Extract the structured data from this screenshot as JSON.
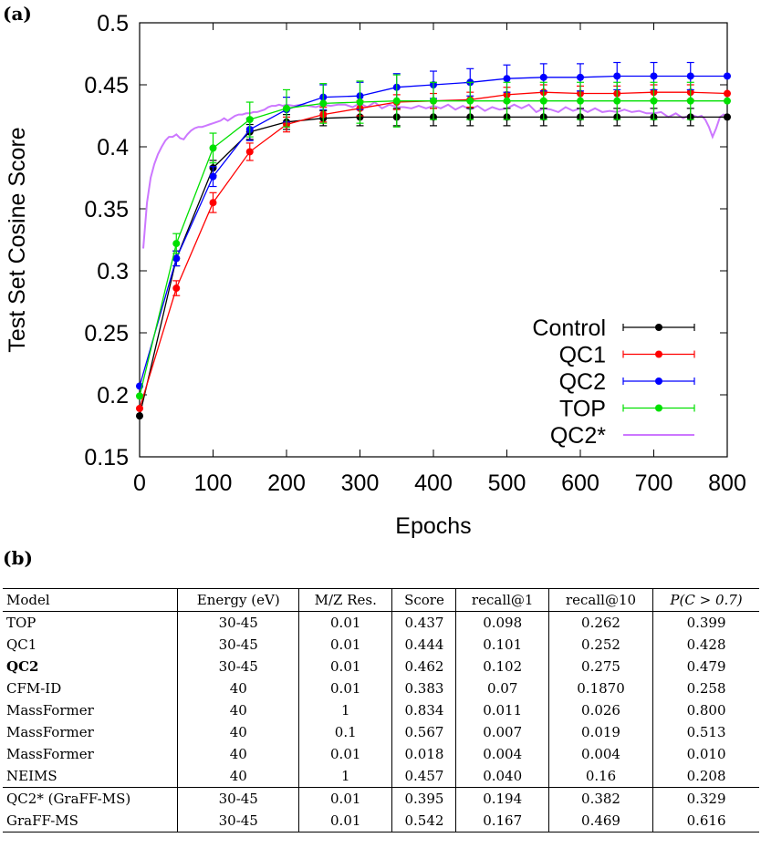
{
  "panel_a_label": "(a)",
  "panel_b_label": "(b)",
  "chart_data": {
    "type": "line",
    "xlabel": "Epochs",
    "ylabel": "Test Set Cosine Score",
    "xlim": [
      0,
      800
    ],
    "ylim": [
      0.15,
      0.5
    ],
    "xticks": [
      "0",
      "100",
      "200",
      "300",
      "400",
      "500",
      "600",
      "700",
      "800"
    ],
    "yticks": [
      "0.15",
      "0.2",
      "0.25",
      "0.3",
      "0.35",
      "0.4",
      "0.45",
      "0.5"
    ],
    "legend_position": "bottom-right",
    "grid": false,
    "x": [
      0,
      50,
      100,
      150,
      200,
      250,
      300,
      350,
      400,
      450,
      500,
      550,
      600,
      650,
      700,
      750,
      800
    ],
    "series": [
      {
        "name": "Control",
        "color": "#000000",
        "values": [
          0.183,
          0.31,
          0.383,
          0.412,
          0.42,
          0.423,
          0.424,
          0.424,
          0.424,
          0.424,
          0.424,
          0.424,
          0.424,
          0.424,
          0.424,
          0.424,
          0.424
        ],
        "errors": [
          0.0,
          0.006,
          0.006,
          0.006,
          0.006,
          0.006,
          0.007,
          0.007,
          0.007,
          0.007,
          0.007,
          0.007,
          0.007,
          0.007,
          0.007,
          0.007,
          0.0
        ]
      },
      {
        "name": "QC1",
        "color": "#ff0000",
        "values": [
          0.189,
          0.286,
          0.355,
          0.396,
          0.418,
          0.426,
          0.431,
          0.436,
          0.437,
          0.438,
          0.442,
          0.444,
          0.443,
          0.443,
          0.444,
          0.444,
          0.443
        ],
        "errors": [
          0.0,
          0.006,
          0.008,
          0.007,
          0.006,
          0.006,
          0.006,
          0.006,
          0.006,
          0.006,
          0.006,
          0.006,
          0.006,
          0.006,
          0.006,
          0.006,
          0.0
        ]
      },
      {
        "name": "QC2",
        "color": "#0000ff",
        "values": [
          0.207,
          0.31,
          0.376,
          0.414,
          0.43,
          0.44,
          0.441,
          0.448,
          0.45,
          0.452,
          0.455,
          0.456,
          0.456,
          0.457,
          0.457,
          0.457,
          0.457
        ],
        "errors": [
          0.0,
          0.006,
          0.008,
          0.009,
          0.01,
          0.01,
          0.011,
          0.011,
          0.011,
          0.011,
          0.011,
          0.011,
          0.011,
          0.011,
          0.011,
          0.011,
          0.0
        ]
      },
      {
        "name": "TOP",
        "color": "#00e000",
        "values": [
          0.199,
          0.322,
          0.399,
          0.422,
          0.431,
          0.435,
          0.436,
          0.437,
          0.437,
          0.437,
          0.437,
          0.437,
          0.437,
          0.437,
          0.437,
          0.437,
          0.437
        ],
        "errors": [
          0.0,
          0.008,
          0.012,
          0.014,
          0.015,
          0.016,
          0.017,
          0.021,
          0.015,
          0.015,
          0.015,
          0.015,
          0.015,
          0.015,
          0.015,
          0.015,
          0.0
        ]
      },
      {
        "name": "QC2*",
        "color": "#cc77ff",
        "line_only": true,
        "x": [
          5,
          10,
          15,
          20,
          25,
          30,
          35,
          40,
          45,
          50,
          55,
          60,
          65,
          70,
          75,
          80,
          85,
          90,
          95,
          100,
          105,
          110,
          115,
          120,
          125,
          130,
          135,
          140,
          145,
          150,
          155,
          160,
          165,
          170,
          175,
          180,
          185,
          190,
          195,
          200,
          210,
          220,
          230,
          240,
          250,
          260,
          270,
          280,
          290,
          300,
          310,
          320,
          330,
          340,
          350,
          360,
          370,
          380,
          390,
          400,
          410,
          420,
          430,
          440,
          450,
          460,
          470,
          480,
          490,
          500,
          510,
          520,
          530,
          540,
          550,
          560,
          570,
          580,
          590,
          600,
          610,
          620,
          630,
          640,
          650,
          660,
          670,
          680,
          690,
          700,
          710,
          720,
          730,
          740,
          750,
          760,
          765,
          770,
          775,
          780,
          785,
          790,
          795,
          800
        ],
        "values": [
          0.318,
          0.355,
          0.375,
          0.386,
          0.394,
          0.4,
          0.405,
          0.408,
          0.408,
          0.41,
          0.407,
          0.406,
          0.41,
          0.413,
          0.415,
          0.416,
          0.416,
          0.417,
          0.418,
          0.419,
          0.42,
          0.421,
          0.423,
          0.421,
          0.423,
          0.425,
          0.426,
          0.426,
          0.427,
          0.427,
          0.428,
          0.428,
          0.429,
          0.43,
          0.432,
          0.433,
          0.433,
          0.434,
          0.433,
          0.434,
          0.433,
          0.434,
          0.433,
          0.432,
          0.434,
          0.433,
          0.434,
          0.434,
          0.432,
          0.435,
          0.432,
          0.436,
          0.431,
          0.434,
          0.432,
          0.432,
          0.431,
          0.433,
          0.431,
          0.433,
          0.431,
          0.434,
          0.43,
          0.433,
          0.43,
          0.433,
          0.429,
          0.432,
          0.43,
          0.431,
          0.434,
          0.431,
          0.434,
          0.428,
          0.431,
          0.43,
          0.428,
          0.432,
          0.429,
          0.431,
          0.428,
          0.431,
          0.428,
          0.429,
          0.428,
          0.43,
          0.428,
          0.429,
          0.427,
          0.427,
          0.428,
          0.424,
          0.427,
          0.423,
          0.426,
          0.424,
          0.425,
          0.422,
          0.416,
          0.408,
          0.415,
          0.424,
          0.426,
          0.425
        ]
      }
    ]
  },
  "table": {
    "headers": [
      "Model",
      "Energy (eV)",
      "M/Z Res.",
      "Score",
      "recall@1",
      "recall@10",
      "P(C > 0.7)"
    ],
    "rows": [
      {
        "cells": [
          "TOP",
          "30-45",
          "0.01",
          "0.437",
          "0.098",
          "0.262",
          "0.399"
        ]
      },
      {
        "cells": [
          "QC1",
          "30-45",
          "0.01",
          "0.444",
          "0.101",
          "0.252",
          "0.428"
        ]
      },
      {
        "cells": [
          "QC2",
          "30-45",
          "0.01",
          "0.462",
          "0.102",
          "0.275",
          "0.479"
        ],
        "bold_first": true
      },
      {
        "cells": [
          "CFM-ID",
          "40",
          "0.01",
          "0.383",
          "0.07",
          "0.1870",
          "0.258"
        ]
      },
      {
        "cells": [
          "MassFormer",
          "40",
          "1",
          "0.834",
          "0.011",
          "0.026",
          "0.800"
        ]
      },
      {
        "cells": [
          "MassFormer",
          "40",
          "0.1",
          "0.567",
          "0.007",
          "0.019",
          "0.513"
        ]
      },
      {
        "cells": [
          "MassFormer",
          "40",
          "0.01",
          "0.018",
          "0.004",
          "0.004",
          "0.010"
        ]
      },
      {
        "cells": [
          "NEIMS",
          "40",
          "1",
          "0.457",
          "0.040",
          "0.16",
          "0.208"
        ]
      },
      {
        "cells": [
          "QC2* (GraFF-MS)",
          "30-45",
          "0.01",
          "0.395",
          "0.194",
          "0.382",
          "0.329"
        ],
        "group_start": true
      },
      {
        "cells": [
          "GraFF-MS",
          "30-45",
          "0.01",
          "0.542",
          "0.167",
          "0.469",
          "0.616"
        ]
      }
    ]
  }
}
